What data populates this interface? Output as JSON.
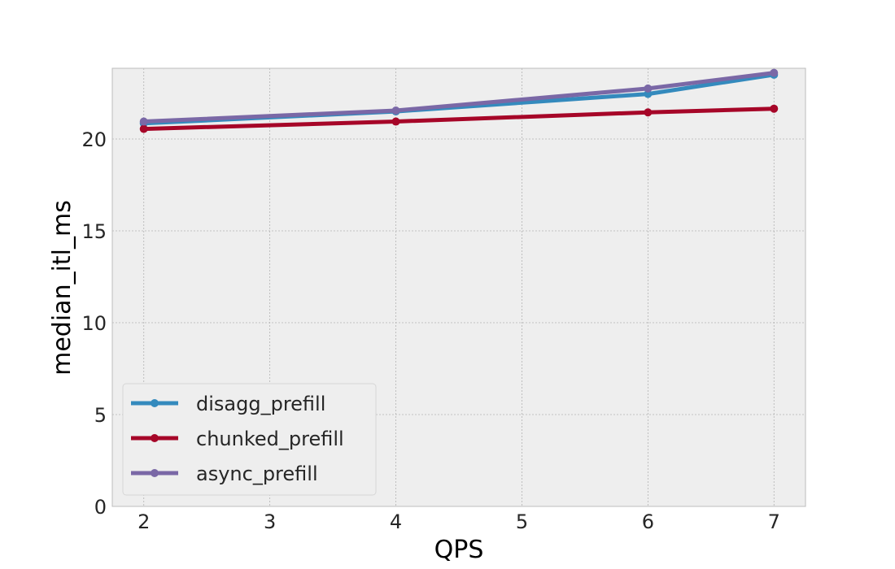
{
  "chart_data": {
    "type": "line",
    "title": "",
    "xlabel": "QPS",
    "ylabel": "median_itl_ms",
    "x": [
      2,
      4,
      6,
      7
    ],
    "xticks": [
      2,
      3,
      4,
      5,
      6,
      7
    ],
    "yticks": [
      0,
      5,
      10,
      15,
      20
    ],
    "xlim": [
      1.75,
      7.25
    ],
    "ylim": [
      0,
      23.85
    ],
    "grid": true,
    "legend_position": "lower-left",
    "series": [
      {
        "name": "disagg_prefill",
        "color": "#348ABD",
        "values": [
          20.85,
          21.5,
          22.45,
          23.5
        ]
      },
      {
        "name": "chunked_prefill",
        "color": "#A60628",
        "values": [
          20.55,
          20.95,
          21.45,
          21.65
        ]
      },
      {
        "name": "async_prefill",
        "color": "#7A68A6",
        "values": [
          20.95,
          21.55,
          22.75,
          23.6
        ]
      }
    ]
  }
}
